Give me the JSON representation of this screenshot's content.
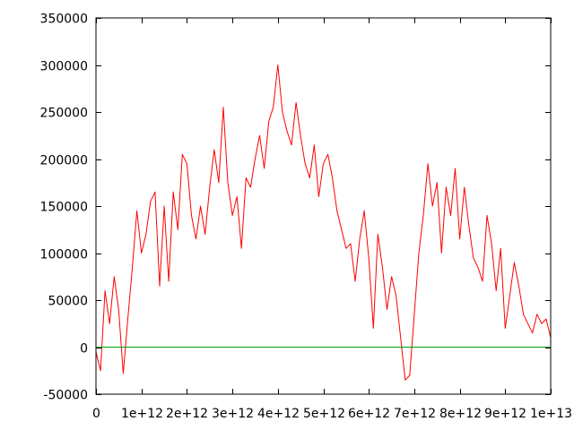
{
  "chart_data": {
    "type": "line",
    "title": "",
    "xlabel": "",
    "ylabel": "",
    "xlim": [
      0,
      10000000000000
    ],
    "ylim": [
      -50000,
      350000
    ],
    "grid": false,
    "legend": "none",
    "x_ticks": [
      {
        "value": 0,
        "label": "0"
      },
      {
        "value": 1000000000000,
        "label": "1e+12"
      },
      {
        "value": 2000000000000,
        "label": "2e+12"
      },
      {
        "value": 3000000000000,
        "label": "3e+12"
      },
      {
        "value": 4000000000000,
        "label": "4e+12"
      },
      {
        "value": 5000000000000,
        "label": "5e+12"
      },
      {
        "value": 6000000000000,
        "label": "6e+12"
      },
      {
        "value": 7000000000000,
        "label": "7e+12"
      },
      {
        "value": 8000000000000,
        "label": "8e+12"
      },
      {
        "value": 9000000000000,
        "label": "9e+12"
      },
      {
        "value": 10000000000000,
        "label": "1e+13"
      }
    ],
    "y_ticks": [
      {
        "value": -50000,
        "label": "-50000"
      },
      {
        "value": 0,
        "label": "0"
      },
      {
        "value": 50000,
        "label": "50000"
      },
      {
        "value": 100000,
        "label": "100000"
      },
      {
        "value": 150000,
        "label": "150000"
      },
      {
        "value": 200000,
        "label": "200000"
      },
      {
        "value": 250000,
        "label": "250000"
      },
      {
        "value": 300000,
        "label": "300000"
      },
      {
        "value": 350000,
        "label": "350000"
      }
    ],
    "series": [
      {
        "color": "#ff0000",
        "x": [
          0,
          100000000000,
          200000000000,
          300000000000,
          400000000000,
          500000000000,
          600000000000,
          700000000000,
          800000000000,
          900000000000,
          1000000000000,
          1100000000000,
          1200000000000,
          1300000000000,
          1400000000000,
          1500000000000,
          1600000000000,
          1700000000000,
          1800000000000,
          1900000000000,
          2000000000000,
          2100000000000,
          2200000000000,
          2300000000000,
          2400000000000,
          2500000000000,
          2600000000000,
          2700000000000,
          2800000000000,
          2900000000000,
          3000000000000,
          3100000000000,
          3200000000000,
          3300000000000,
          3400000000000,
          3500000000000,
          3600000000000,
          3700000000000,
          3800000000000,
          3900000000000,
          4000000000000,
          4100000000000,
          4200000000000,
          4300000000000,
          4400000000000,
          4500000000000,
          4600000000000,
          4700000000000,
          4800000000000,
          4900000000000,
          5000000000000,
          5100000000000,
          5200000000000,
          5300000000000,
          5400000000000,
          5500000000000,
          5600000000000,
          5700000000000,
          5800000000000,
          5900000000000,
          6000000000000,
          6100000000000,
          6200000000000,
          6300000000000,
          6400000000000,
          6500000000000,
          6600000000000,
          6700000000000,
          6800000000000,
          6900000000000,
          7000000000000,
          7100000000000,
          7200000000000,
          7300000000000,
          7400000000000,
          7500000000000,
          7600000000000,
          7700000000000,
          7800000000000,
          7900000000000,
          8000000000000,
          8100000000000,
          8200000000000,
          8300000000000,
          8400000000000,
          8500000000000,
          8600000000000,
          8700000000000,
          8800000000000,
          8900000000000,
          9000000000000,
          9100000000000,
          9200000000000,
          9300000000000,
          9400000000000,
          9500000000000,
          9600000000000,
          9700000000000,
          9800000000000,
          9900000000000,
          10000000000000
        ],
        "values": [
          -5000,
          -25000,
          60000,
          25000,
          75000,
          40000,
          -28000,
          30000,
          85000,
          145000,
          100000,
          120000,
          155000,
          165000,
          65000,
          150000,
          70000,
          165000,
          125000,
          205000,
          195000,
          140000,
          115000,
          150000,
          120000,
          170000,
          210000,
          175000,
          255000,
          175000,
          140000,
          160000,
          105000,
          180000,
          170000,
          200000,
          225000,
          190000,
          240000,
          255000,
          300000,
          250000,
          230000,
          215000,
          260000,
          225000,
          195000,
          180000,
          215000,
          160000,
          195000,
          205000,
          180000,
          145000,
          125000,
          105000,
          110000,
          70000,
          115000,
          145000,
          95000,
          20000,
          120000,
          85000,
          40000,
          75000,
          55000,
          10000,
          -35000,
          -30000,
          35000,
          100000,
          140000,
          195000,
          150000,
          175000,
          100000,
          170000,
          140000,
          190000,
          115000,
          170000,
          130000,
          95000,
          85000,
          70000,
          140000,
          110000,
          60000,
          105000,
          20000,
          55000,
          90000,
          65000,
          35000,
          25000,
          15000,
          35000,
          25000,
          30000,
          10000
        ]
      },
      {
        "color": "#00a000",
        "x": [
          0,
          10000000000000
        ],
        "values": [
          0,
          0
        ]
      }
    ]
  }
}
